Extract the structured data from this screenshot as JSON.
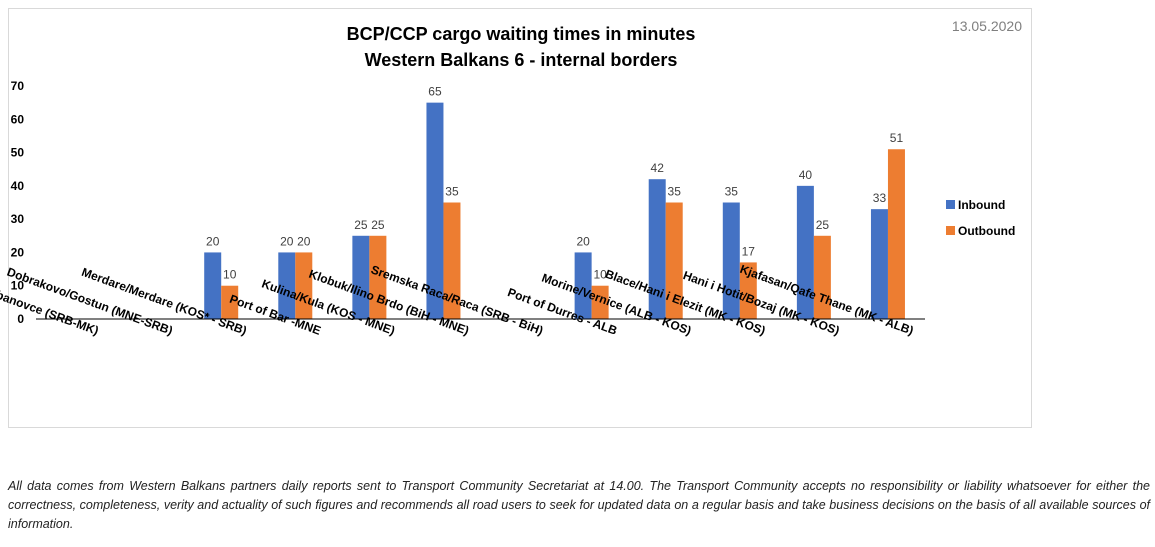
{
  "date": "13.05.2020",
  "footnote": "All data comes from Western Balkans partners daily reports sent to Transport Community Secretariat at 14.00. The Transport Community accepts no responsibility or liability whatsoever for either the correctness, completeness, verity and actuality of such figures and recommends all road users to seek for updated data on a regular basis and take business decisions on the basis of all available sources of information.",
  "chart_data": {
    "type": "bar",
    "title": "BCP/CCP cargo waiting times in minutes",
    "subtitle": "Western Balkans 6 - internal borders",
    "xlabel": "",
    "ylabel": "",
    "ylim": [
      0,
      70
    ],
    "yticks": [
      0,
      10,
      20,
      30,
      40,
      50,
      60,
      70
    ],
    "grid": false,
    "legend_position": "right",
    "categories": [
      "Presevo/ Tabanovce (SRB-MK)",
      "Dobrakovo/Gostun (MNE-SRB)",
      "Merdare/Merdare (KOS* - SRB)",
      "Port of Bar -MNE",
      "Kulina/Kula (KOS - MNE)",
      "Klobuk/Ilino Brdo (BiH - MNE)",
      "Sremska Raca/Raca (SRB - BiH)",
      "Port of Durres - ALB",
      "Morine/Vernice (ALB - KOS)",
      "Blace/Hani i Elezit (MK - KOS)",
      "Hani i Hotit/Bozaj (MK - KOS)",
      "Kjafasan/Qafe Thane (MK - ALB)"
    ],
    "series": [
      {
        "name": "Inbound",
        "color": "#4472c4",
        "values": [
          null,
          null,
          20,
          20,
          25,
          65,
          null,
          20,
          42,
          35,
          40,
          33
        ]
      },
      {
        "name": "Outbound",
        "color": "#ed7d31",
        "values": [
          null,
          null,
          10,
          20,
          25,
          35,
          null,
          10,
          35,
          17,
          25,
          51
        ]
      }
    ]
  }
}
